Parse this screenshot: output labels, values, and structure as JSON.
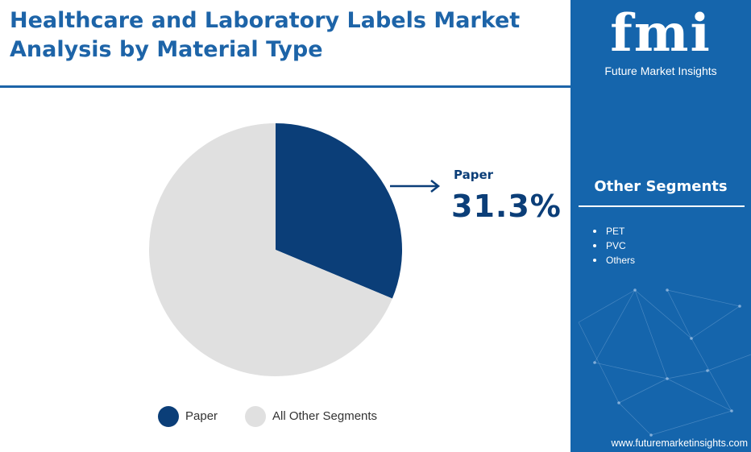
{
  "header": {
    "title_line1": "Healthcare and Laboratory Labels Market",
    "title_line2": "Analysis by Material Type"
  },
  "brand": {
    "logo_text": "fmi",
    "name": "Future Market Insights",
    "url": "www.futuremarketinsights.com"
  },
  "other_segments": {
    "heading": "Other Segments",
    "items": [
      "PET",
      "PVC",
      "Others"
    ]
  },
  "callout": {
    "label": "Paper",
    "value": "31.3%"
  },
  "legend": [
    {
      "label": "Paper",
      "color": "#0b3e78"
    },
    {
      "label": "All Other Segments",
      "color": "#e0e0e0"
    }
  ],
  "colors": {
    "primary": "#0b3e78",
    "accent_panel": "#1565ac",
    "title": "#1d64a8",
    "other": "#e0e0e0"
  },
  "chart_data": {
    "type": "pie",
    "categories": [
      "Paper",
      "All Other Segments"
    ],
    "values": [
      31.3,
      68.7
    ],
    "colors": [
      "#0b3e78",
      "#e0e0e0"
    ],
    "start_angle": "top, clockwise"
  }
}
